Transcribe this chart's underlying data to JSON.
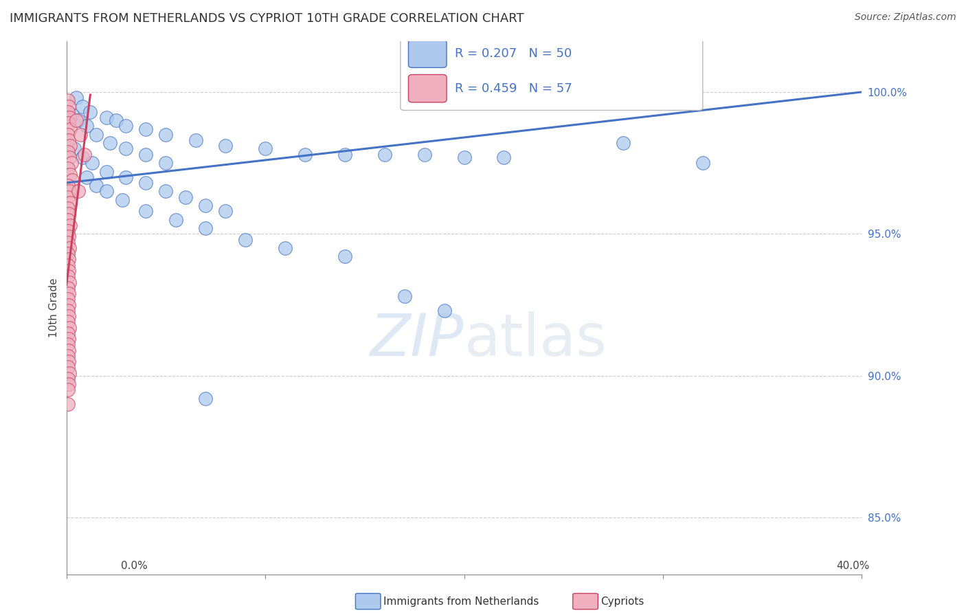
{
  "title": "IMMIGRANTS FROM NETHERLANDS VS CYPRIOT 10TH GRADE CORRELATION CHART",
  "source": "Source: ZipAtlas.com",
  "ylabel": "10th Grade",
  "x_range": [
    0.0,
    40.0
  ],
  "y_range": [
    83.0,
    101.8
  ],
  "y_ticks": [
    85.0,
    90.0,
    95.0,
    100.0
  ],
  "y_tick_labels": [
    "85.0%",
    "90.0%",
    "95.0%",
    "100.0%"
  ],
  "x_ticks": [
    0.0,
    10.0,
    20.0,
    30.0,
    40.0
  ],
  "blue_R": 0.207,
  "blue_N": 50,
  "pink_R": 0.459,
  "pink_N": 57,
  "blue_color": "#adc9ed",
  "pink_color": "#f0b0c0",
  "blue_line_color": "#4472c4",
  "pink_line_color": "#c94060",
  "legend_label_blue": "Immigrants from Netherlands",
  "legend_label_pink": "Cypriots",
  "watermark_zip": "ZIP",
  "watermark_atlas": "atlas",
  "blue_trend_x": [
    0.0,
    40.0
  ],
  "blue_trend_y": [
    96.8,
    100.0
  ],
  "pink_trend_x": [
    0.0,
    1.2
  ],
  "pink_trend_y": [
    93.2,
    99.9
  ],
  "blue_dots": [
    [
      0.5,
      99.8
    ],
    [
      0.8,
      99.5
    ],
    [
      1.2,
      99.3
    ],
    [
      2.0,
      99.1
    ],
    [
      2.5,
      99.0
    ],
    [
      3.0,
      98.8
    ],
    [
      4.0,
      98.7
    ],
    [
      5.0,
      98.5
    ],
    [
      6.5,
      98.3
    ],
    [
      8.0,
      98.1
    ],
    [
      10.0,
      98.0
    ],
    [
      12.0,
      97.8
    ],
    [
      14.0,
      97.8
    ],
    [
      16.0,
      97.8
    ],
    [
      18.0,
      97.8
    ],
    [
      20.0,
      97.7
    ],
    [
      22.0,
      97.7
    ],
    [
      0.3,
      99.2
    ],
    [
      0.6,
      99.0
    ],
    [
      1.0,
      98.8
    ],
    [
      1.5,
      98.5
    ],
    [
      2.2,
      98.2
    ],
    [
      3.0,
      98.0
    ],
    [
      4.0,
      97.8
    ],
    [
      5.0,
      97.5
    ],
    [
      0.4,
      98.0
    ],
    [
      0.8,
      97.7
    ],
    [
      1.3,
      97.5
    ],
    [
      2.0,
      97.2
    ],
    [
      3.0,
      97.0
    ],
    [
      4.0,
      96.8
    ],
    [
      5.0,
      96.5
    ],
    [
      6.0,
      96.3
    ],
    [
      7.0,
      96.0
    ],
    [
      8.0,
      95.8
    ],
    [
      1.0,
      97.0
    ],
    [
      1.5,
      96.7
    ],
    [
      2.0,
      96.5
    ],
    [
      2.8,
      96.2
    ],
    [
      4.0,
      95.8
    ],
    [
      5.5,
      95.5
    ],
    [
      7.0,
      95.2
    ],
    [
      9.0,
      94.8
    ],
    [
      11.0,
      94.5
    ],
    [
      14.0,
      94.2
    ],
    [
      28.0,
      98.2
    ],
    [
      32.0,
      97.5
    ],
    [
      17.0,
      92.8
    ],
    [
      19.0,
      92.3
    ],
    [
      7.0,
      89.2
    ]
  ],
  "pink_dots": [
    [
      0.08,
      99.7
    ],
    [
      0.12,
      99.5
    ],
    [
      0.08,
      99.3
    ],
    [
      0.15,
      99.1
    ],
    [
      0.1,
      98.9
    ],
    [
      0.18,
      98.7
    ],
    [
      0.08,
      98.5
    ],
    [
      0.12,
      98.3
    ],
    [
      0.2,
      98.1
    ],
    [
      0.08,
      97.9
    ],
    [
      0.15,
      97.7
    ],
    [
      0.25,
      97.5
    ],
    [
      0.08,
      97.3
    ],
    [
      0.18,
      97.1
    ],
    [
      0.3,
      96.9
    ],
    [
      0.08,
      96.7
    ],
    [
      0.15,
      96.5
    ],
    [
      0.08,
      96.3
    ],
    [
      0.2,
      96.1
    ],
    [
      0.08,
      95.9
    ],
    [
      0.12,
      95.7
    ],
    [
      0.08,
      95.5
    ],
    [
      0.18,
      95.3
    ],
    [
      0.08,
      95.1
    ],
    [
      0.12,
      94.9
    ],
    [
      0.08,
      94.7
    ],
    [
      0.15,
      94.5
    ],
    [
      0.08,
      94.3
    ],
    [
      0.1,
      94.1
    ],
    [
      0.08,
      93.9
    ],
    [
      0.12,
      93.7
    ],
    [
      0.08,
      93.5
    ],
    [
      0.15,
      93.3
    ],
    [
      0.08,
      93.1
    ],
    [
      0.12,
      92.9
    ],
    [
      0.08,
      92.7
    ],
    [
      0.1,
      92.5
    ],
    [
      0.08,
      92.3
    ],
    [
      0.12,
      92.1
    ],
    [
      0.08,
      91.9
    ],
    [
      0.15,
      91.7
    ],
    [
      0.08,
      91.5
    ],
    [
      0.12,
      91.3
    ],
    [
      0.08,
      91.1
    ],
    [
      0.1,
      90.9
    ],
    [
      0.08,
      90.7
    ],
    [
      0.12,
      90.5
    ],
    [
      0.08,
      90.3
    ],
    [
      0.15,
      90.1
    ],
    [
      0.08,
      89.9
    ],
    [
      0.12,
      89.7
    ],
    [
      0.08,
      89.5
    ],
    [
      0.5,
      99.0
    ],
    [
      0.7,
      98.5
    ],
    [
      0.9,
      97.8
    ],
    [
      0.6,
      96.5
    ],
    [
      0.08,
      89.0
    ]
  ]
}
